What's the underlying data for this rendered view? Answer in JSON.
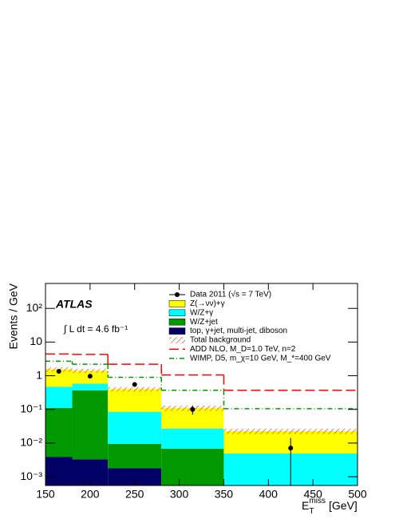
{
  "chart_data": {
    "type": "histogram",
    "annotations": [
      "ATLAS",
      "∫ L dt = 4.6 fb⁻¹"
    ],
    "y_label": "Events / GeV",
    "x_label": "E",
    "x_label_sub": "T",
    "x_label_sup": "miss",
    "x_label_unit": "[GeV]",
    "log_y": true,
    "legend": "top-right",
    "bins": [
      150,
      180,
      220,
      280,
      350,
      500
    ],
    "xlim": [
      150,
      500
    ],
    "xticks": [
      150,
      200,
      250,
      300,
      350,
      400,
      450,
      500
    ],
    "ylim": [
      0.00055,
      550
    ],
    "yticks": [
      {
        "value": 0.001,
        "label": "10⁻³"
      },
      {
        "value": 0.01,
        "label": "10⁻²"
      },
      {
        "value": 0.1,
        "label": "10⁻¹"
      },
      {
        "value": 1,
        "label": "1"
      },
      {
        "value": 10,
        "label": "10"
      },
      {
        "value": 100,
        "label": "10²"
      }
    ],
    "series": [
      {
        "name": "top, γ+jet, multi-jet, diboson",
        "color": "#000066",
        "values": [
          0.0039,
          0.0033,
          0.0018,
          0,
          0
        ]
      },
      {
        "name": "W/Z+jet",
        "color": "#009900",
        "values": [
          0.106,
          0.367,
          0.0077,
          0.0068,
          0
        ]
      },
      {
        "name": "W/Z+γ",
        "color": "#00ffff",
        "values": [
          0.36,
          0.21,
          0.0755,
          0.02,
          0.0049
        ]
      },
      {
        "name": "Z(→νν)+γ",
        "color": "#ffff00",
        "values": [
          1.08,
          0.82,
          0.315,
          0.083,
          0.0177
        ]
      }
    ],
    "total_background": {
      "name": "Total background",
      "color": "#ff0000",
      "errors": [
        0.25,
        0.2,
        0.06,
        0.02,
        0.004
      ]
    },
    "data": {
      "name": "Data 2011 (√s = 7 TeV)",
      "color": "#000000",
      "x": [
        165,
        200,
        250,
        315,
        425
      ],
      "values": [
        1.35,
        0.97,
        0.55,
        0.1,
        0.0071
      ],
      "errors": [
        0.1,
        0.07,
        0.04,
        0.03,
        0.0071
      ]
    },
    "signals": [
      {
        "name": "ADD NLO, M_D=1.0 TeV, n=2",
        "color": "#ff0000",
        "dash": "12 5",
        "values": [
          4.4,
          4.3,
          2.2,
          1.05,
          0.37
        ]
      },
      {
        "name": "WIMP, D5, m_χ=10 GeV, M_*=400 GeV",
        "color": "#009900",
        "dash": "6 3 1 3",
        "values": [
          2.7,
          2.2,
          0.9,
          0.37,
          0.105
        ]
      }
    ]
  }
}
